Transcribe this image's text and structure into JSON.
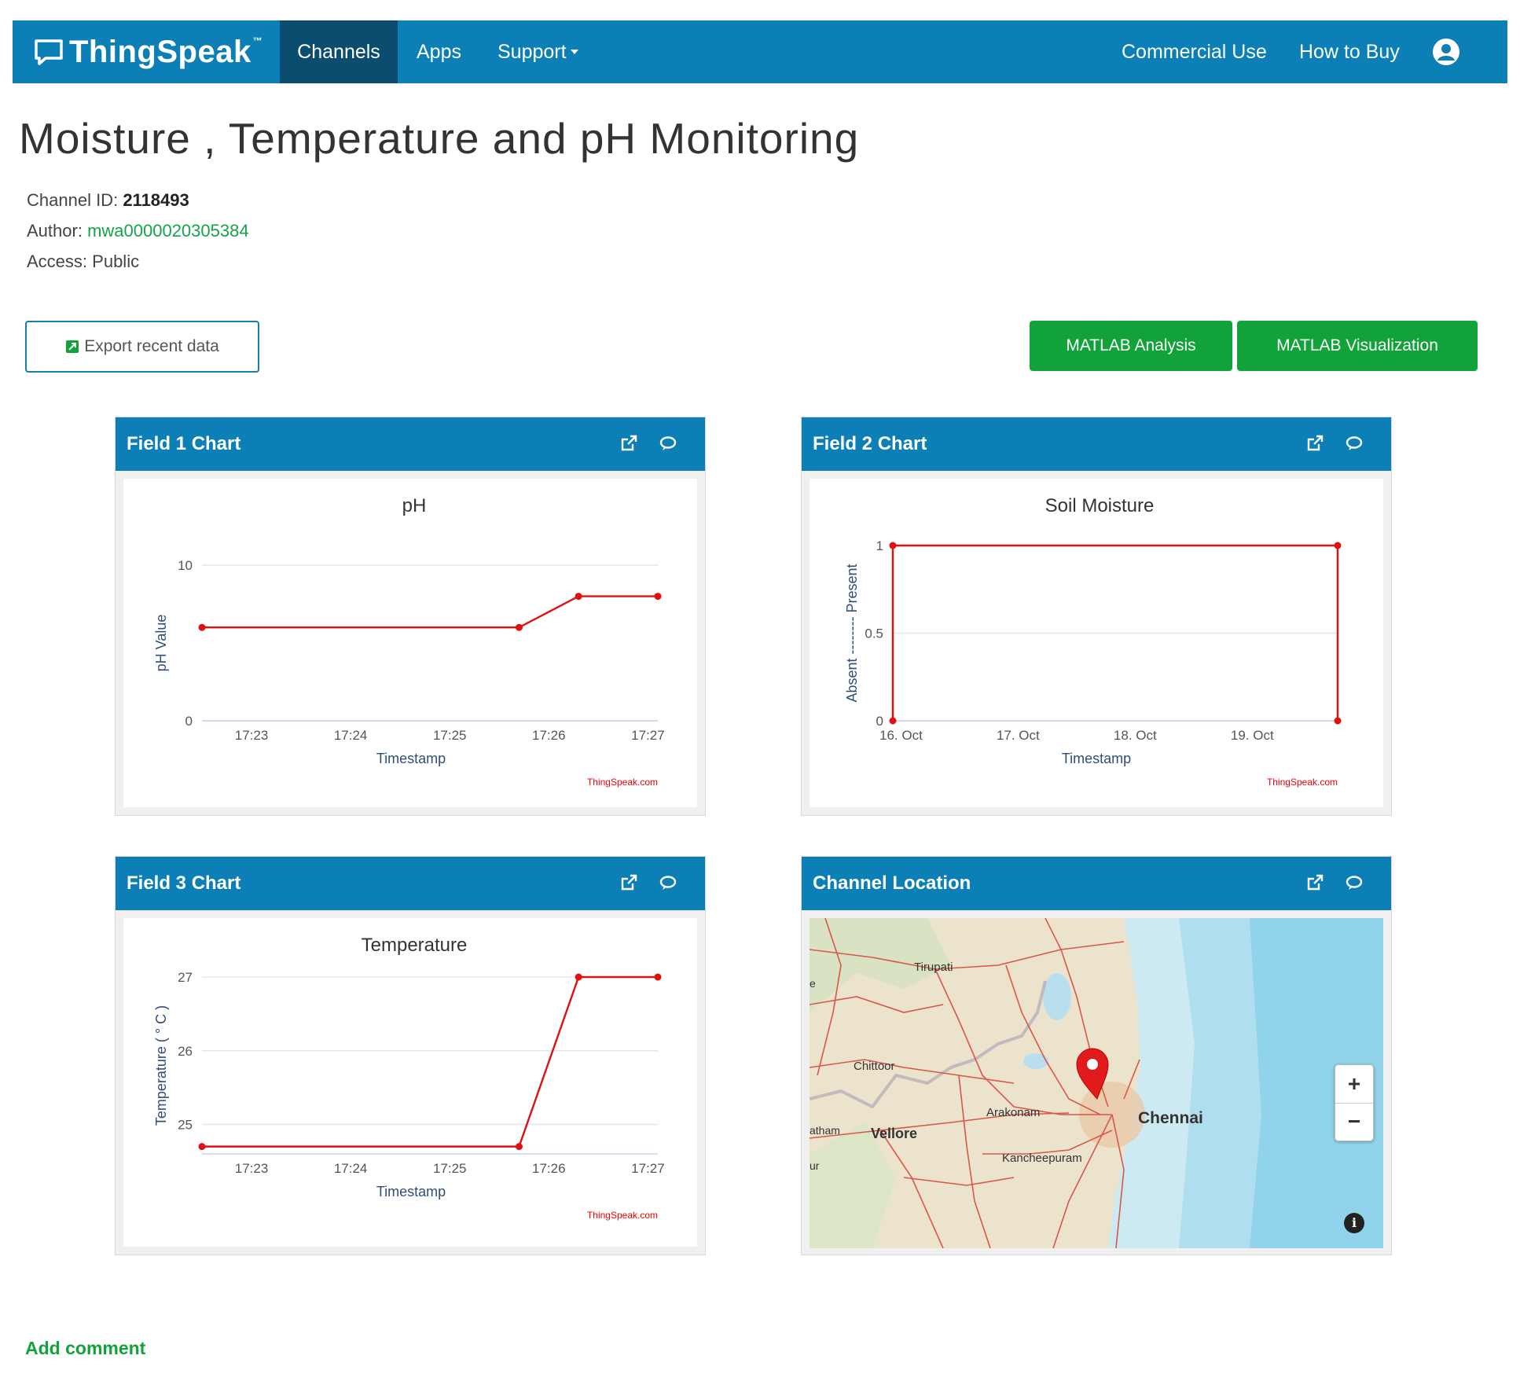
{
  "navbar": {
    "brand": "ThingSpeak",
    "brand_tm": "™",
    "items": [
      {
        "label": "Channels",
        "icon": ""
      },
      {
        "label": "Apps",
        "icon": ""
      },
      {
        "label": "Support",
        "icon": "caret-down-icon"
      },
      {
        "label": "Commercial Use",
        "icon": ""
      },
      {
        "label": "How to Buy",
        "icon": ""
      }
    ],
    "user_icon": "user-account-icon"
  },
  "channel": {
    "title": "Moisture , Temperature and pH Monitoring",
    "id_label": "Channel ID:",
    "id_value": "2118493",
    "author_label": "Author:",
    "author_value": "mwa0000020305384",
    "access_label": "Access:",
    "access_value": "Public"
  },
  "actions": {
    "export": "Export recent data",
    "matlab_analysis": "MATLAB Analysis",
    "matlab_visualization": "MATLAB Visualization"
  },
  "panels": [
    {
      "title": "Field 1 Chart"
    },
    {
      "title": "Field 2 Chart"
    },
    {
      "title": "Field 3 Chart"
    },
    {
      "title": "Channel Location"
    }
  ],
  "chart_data": [
    {
      "type": "line",
      "title": "pH",
      "xlabel": "Timestamp",
      "ylabel": "pH Value",
      "x_tick_labels": [
        "17:23",
        "17:24",
        "17:25",
        "17:26",
        "17:27"
      ],
      "y_ticks": [
        0,
        10
      ],
      "x_tick_positions": [
        0.5,
        1.5,
        2.5,
        3.5,
        4.5
      ],
      "x": [
        0.0,
        3.2,
        3.8,
        4.6
      ],
      "y": [
        6,
        6,
        8,
        8
      ],
      "xlim": [
        0,
        4.6
      ],
      "ylim": [
        0,
        10
      ],
      "series": [
        {
          "color": "#e01010"
        }
      ],
      "credit": "ThingSpeak.com"
    },
    {
      "type": "line",
      "title": "Soil Moisture",
      "xlabel": "Timestamp",
      "ylabel": "Absent -------- Present",
      "x_tick_labels": [
        "16. Oct",
        "17. Oct",
        "18. Oct",
        "19. Oct"
      ],
      "y_ticks": [
        0,
        0.5,
        1
      ],
      "x_tick_positions": [
        0.07,
        1.07,
        2.07,
        3.07
      ],
      "x": [
        0,
        0,
        3.8,
        3.8
      ],
      "y": [
        0,
        1,
        1,
        0
      ],
      "xlim": [
        0,
        3.8
      ],
      "ylim": [
        0,
        1
      ],
      "series": [
        {
          "color": "#e01010"
        }
      ],
      "credit": "ThingSpeak.com"
    },
    {
      "type": "line",
      "title": "Temperature",
      "xlabel": "Timestamp",
      "ylabel": "Temperature ( ° C )",
      "x_tick_labels": [
        "17:23",
        "17:24",
        "17:25",
        "17:26",
        "17:27"
      ],
      "y_ticks": [
        25,
        26,
        27
      ],
      "x_tick_positions": [
        0.5,
        1.5,
        2.5,
        3.5,
        4.5
      ],
      "x": [
        0.0,
        3.2,
        3.8,
        4.6
      ],
      "y": [
        24.7,
        24.7,
        27,
        27
      ],
      "xlim": [
        0,
        4.6
      ],
      "ylim": [
        24.6,
        27
      ],
      "series": [
        {
          "color": "#e01010"
        }
      ],
      "credit": "ThingSpeak.com"
    }
  ],
  "map": {
    "labels": [
      {
        "text": "Tirupati",
        "bold": false
      },
      {
        "text": "Chittoor",
        "bold": false
      },
      {
        "text": "Arakonam",
        "bold": false
      },
      {
        "text": "Chennai",
        "bold": true
      },
      {
        "text": "Vellore",
        "bold": true
      },
      {
        "text": "Kancheepuram",
        "bold": false
      },
      {
        "text": "atham",
        "bold": false
      },
      {
        "text": "e",
        "bold": false
      },
      {
        "text": "ur",
        "bold": false
      }
    ],
    "zoom_in": "+",
    "zoom_out": "−",
    "info": "i",
    "marker_icon": "location-pin-icon"
  },
  "footer": {
    "add_comment": "Add comment"
  }
}
